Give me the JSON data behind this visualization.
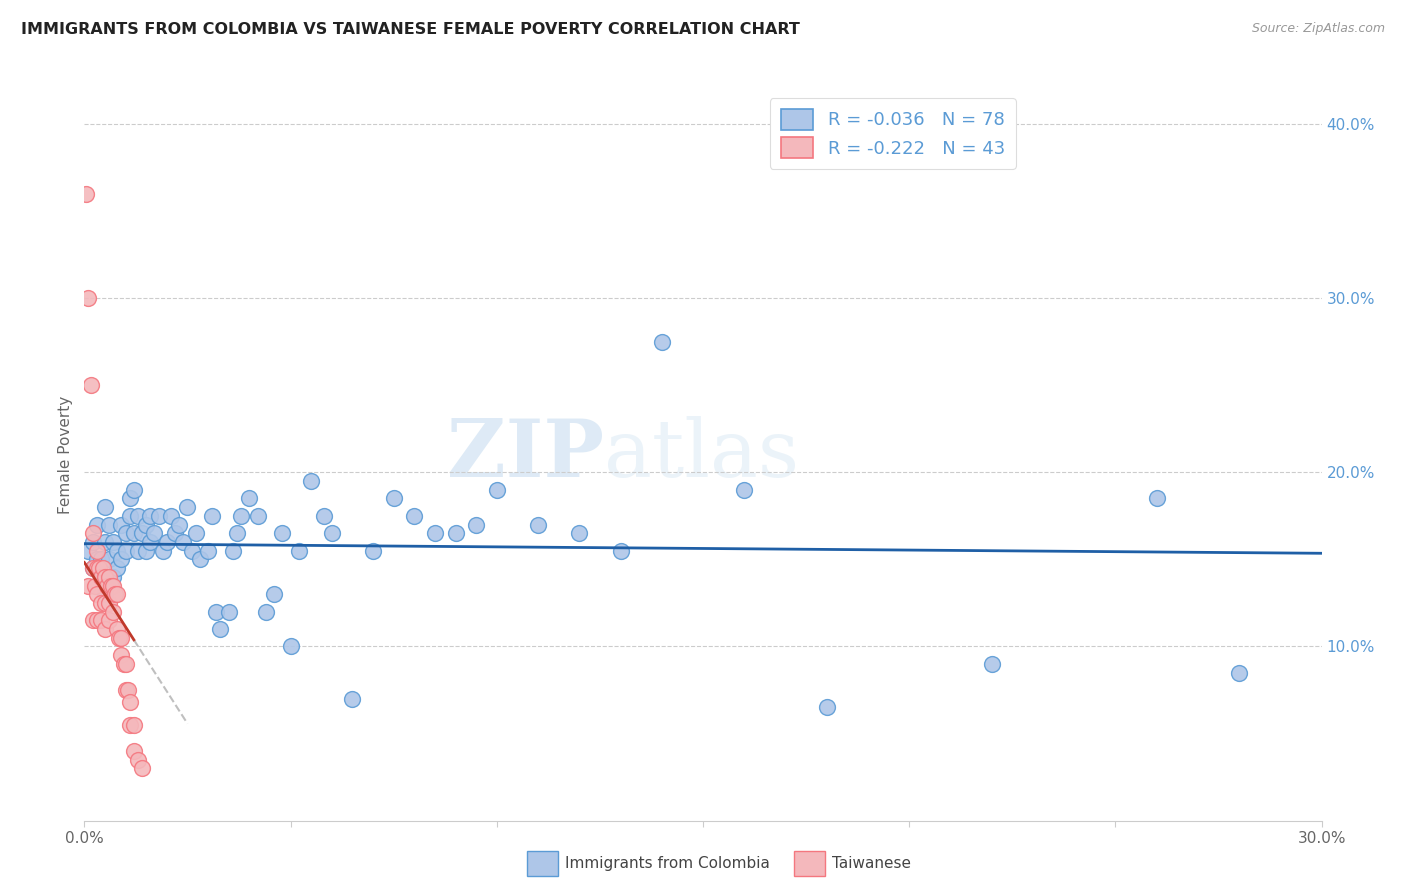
{
  "title": "IMMIGRANTS FROM COLOMBIA VS TAIWANESE FEMALE POVERTY CORRELATION CHART",
  "source": "Source: ZipAtlas.com",
  "ylabel": "Female Poverty",
  "x_min": 0.0,
  "x_max": 0.3,
  "y_min": 0.0,
  "y_max": 0.42,
  "x_ticks": [
    0.0,
    0.05,
    0.1,
    0.15,
    0.2,
    0.25,
    0.3
  ],
  "x_tick_labels": [
    "0.0%",
    "",
    "",
    "",
    "",
    "",
    "30.0%"
  ],
  "y_ticks_right": [
    0.1,
    0.2,
    0.3,
    0.4
  ],
  "y_tick_labels_right": [
    "10.0%",
    "20.0%",
    "30.0%",
    "40.0%"
  ],
  "legend_labels": [
    "Immigrants from Colombia",
    "Taiwanese"
  ],
  "r_colombia": -0.036,
  "n_colombia": 78,
  "r_taiwanese": -0.222,
  "n_taiwanese": 43,
  "blue_color": "#5b9bd5",
  "blue_light": "#aec6e8",
  "pink_color": "#f4777f",
  "pink_light": "#f4b8bc",
  "trend_blue": "#1f5fa6",
  "trend_pink": "#c0392b",
  "trend_gray": "#b0b0b0",
  "watermark_zip": "ZIP",
  "watermark_atlas": "atlas",
  "colombia_x": [
    0.001,
    0.002,
    0.002,
    0.003,
    0.003,
    0.004,
    0.004,
    0.005,
    0.005,
    0.005,
    0.006,
    0.006,
    0.007,
    0.007,
    0.008,
    0.008,
    0.009,
    0.009,
    0.01,
    0.01,
    0.011,
    0.011,
    0.012,
    0.012,
    0.013,
    0.013,
    0.014,
    0.015,
    0.015,
    0.016,
    0.016,
    0.017,
    0.018,
    0.019,
    0.02,
    0.021,
    0.022,
    0.023,
    0.024,
    0.025,
    0.026,
    0.027,
    0.028,
    0.03,
    0.031,
    0.032,
    0.033,
    0.035,
    0.036,
    0.037,
    0.038,
    0.04,
    0.042,
    0.044,
    0.046,
    0.048,
    0.05,
    0.052,
    0.055,
    0.058,
    0.06,
    0.065,
    0.07,
    0.075,
    0.08,
    0.085,
    0.09,
    0.095,
    0.1,
    0.11,
    0.12,
    0.13,
    0.14,
    0.16,
    0.18,
    0.22,
    0.26,
    0.28
  ],
  "colombia_y": [
    0.155,
    0.145,
    0.16,
    0.15,
    0.17,
    0.14,
    0.15,
    0.13,
    0.16,
    0.18,
    0.15,
    0.17,
    0.14,
    0.16,
    0.155,
    0.145,
    0.15,
    0.17,
    0.155,
    0.165,
    0.175,
    0.185,
    0.19,
    0.165,
    0.175,
    0.155,
    0.165,
    0.17,
    0.155,
    0.175,
    0.16,
    0.165,
    0.175,
    0.155,
    0.16,
    0.175,
    0.165,
    0.17,
    0.16,
    0.18,
    0.155,
    0.165,
    0.15,
    0.155,
    0.175,
    0.12,
    0.11,
    0.12,
    0.155,
    0.165,
    0.175,
    0.185,
    0.175,
    0.12,
    0.13,
    0.165,
    0.1,
    0.155,
    0.195,
    0.175,
    0.165,
    0.07,
    0.155,
    0.185,
    0.175,
    0.165,
    0.165,
    0.17,
    0.19,
    0.17,
    0.165,
    0.155,
    0.275,
    0.19,
    0.065,
    0.09,
    0.185,
    0.085
  ],
  "taiwanese_x": [
    0.0005,
    0.001,
    0.001,
    0.0015,
    0.002,
    0.002,
    0.002,
    0.0025,
    0.003,
    0.003,
    0.003,
    0.003,
    0.0035,
    0.004,
    0.004,
    0.004,
    0.0045,
    0.005,
    0.005,
    0.005,
    0.0055,
    0.006,
    0.006,
    0.006,
    0.0065,
    0.007,
    0.007,
    0.0075,
    0.008,
    0.008,
    0.0085,
    0.009,
    0.009,
    0.0095,
    0.01,
    0.01,
    0.0105,
    0.011,
    0.011,
    0.012,
    0.012,
    0.013,
    0.014
  ],
  "taiwanese_y": [
    0.36,
    0.3,
    0.135,
    0.25,
    0.165,
    0.145,
    0.115,
    0.135,
    0.155,
    0.145,
    0.13,
    0.115,
    0.145,
    0.14,
    0.125,
    0.115,
    0.145,
    0.14,
    0.125,
    0.11,
    0.135,
    0.14,
    0.125,
    0.115,
    0.135,
    0.135,
    0.12,
    0.13,
    0.13,
    0.11,
    0.105,
    0.105,
    0.095,
    0.09,
    0.09,
    0.075,
    0.075,
    0.068,
    0.055,
    0.055,
    0.04,
    0.035,
    0.03
  ]
}
